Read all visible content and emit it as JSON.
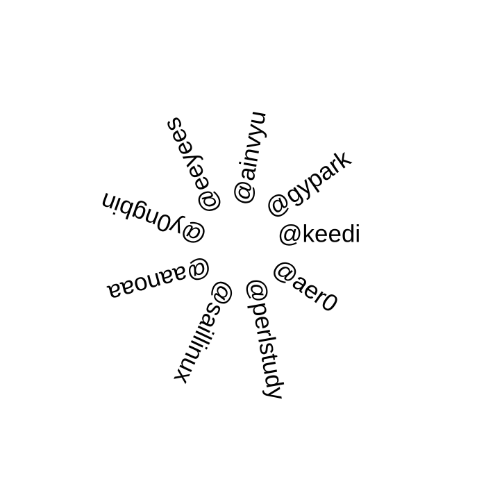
{
  "handles": [
    "@keedi",
    "@aer0",
    "@perlstudy",
    "@saillinux",
    "@aanoaa",
    "@y0ngbin",
    "@eeyees",
    "@ainvyu",
    "@gypark"
  ],
  "text_color": "#000000",
  "background_color": "#ffffff"
}
